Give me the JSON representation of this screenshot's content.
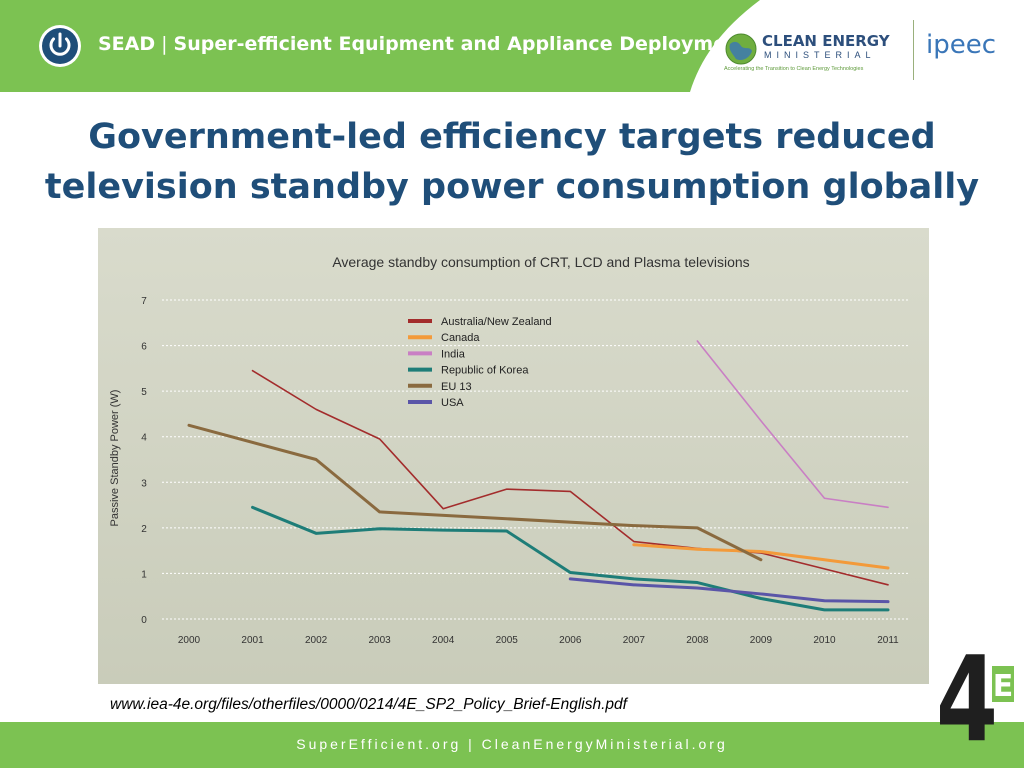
{
  "header": {
    "brand": "SEAD",
    "separator": "|",
    "title": "Super-efficient Equipment and Appliance Deployment",
    "cem_name": "CLEAN ENERGY",
    "cem_sub": "MINISTERIAL",
    "cem_tagline": "Accelerating the Transition to Clean Energy Technologies",
    "ipeec": "ipeec",
    "colors": {
      "green": "#7cc252",
      "navy": "#1f4e79"
    }
  },
  "slide": {
    "title_line1": "Government-led efficiency targets reduced",
    "title_line2": "television standby power consumption globally"
  },
  "chart_data": {
    "type": "line",
    "title": "Average standby consumption of CRT, LCD and Plasma televisions",
    "xlabel": "",
    "ylabel": "Passive Standby Power (W)",
    "x": [
      2000,
      2001,
      2002,
      2003,
      2004,
      2005,
      2006,
      2007,
      2008,
      2009,
      2010,
      2011
    ],
    "ylim": [
      0,
      7
    ],
    "yticks": [
      0,
      1,
      2,
      3,
      4,
      5,
      6,
      7
    ],
    "grid": true,
    "legend_position": "top-center",
    "series": [
      {
        "name": "Australia/New Zealand",
        "color": "#a32c2c",
        "points": [
          [
            2001,
            5.45
          ],
          [
            2002,
            4.6
          ],
          [
            2003,
            3.95
          ],
          [
            2004,
            2.42
          ],
          [
            2005,
            2.85
          ],
          [
            2006,
            2.8
          ],
          [
            2007,
            1.7
          ],
          [
            2008,
            1.55
          ],
          [
            2009,
            1.45
          ],
          [
            2010,
            1.1
          ],
          [
            2011,
            0.75
          ]
        ]
      },
      {
        "name": "Canada",
        "color": "#f39a3a",
        "points": [
          [
            2007,
            1.63
          ],
          [
            2008,
            1.53
          ],
          [
            2009,
            1.48
          ],
          [
            2010,
            1.3
          ],
          [
            2011,
            1.12
          ]
        ]
      },
      {
        "name": "India",
        "color": "#c97fc4",
        "points": [
          [
            2008,
            6.1
          ],
          [
            2009,
            4.35
          ],
          [
            2010,
            2.65
          ],
          [
            2011,
            2.45
          ]
        ]
      },
      {
        "name": "Republic of Korea",
        "color": "#1e7d78",
        "points": [
          [
            2001,
            2.45
          ],
          [
            2002,
            1.88
          ],
          [
            2003,
            1.98
          ],
          [
            2004,
            1.95
          ],
          [
            2005,
            1.93
          ],
          [
            2006,
            1.02
          ],
          [
            2007,
            0.88
          ],
          [
            2008,
            0.8
          ],
          [
            2009,
            0.45
          ],
          [
            2010,
            0.2
          ],
          [
            2011,
            0.2
          ]
        ]
      },
      {
        "name": "EU 13",
        "color": "#8a6a3f",
        "points": [
          [
            2000,
            4.25
          ],
          [
            2002,
            3.5
          ],
          [
            2003,
            2.35
          ],
          [
            2007,
            2.05
          ],
          [
            2008,
            2.0
          ],
          [
            2009,
            1.3
          ]
        ]
      },
      {
        "name": "USA",
        "color": "#5a55a8",
        "points": [
          [
            2006,
            0.88
          ],
          [
            2007,
            0.75
          ],
          [
            2008,
            0.68
          ],
          [
            2009,
            0.55
          ],
          [
            2010,
            0.4
          ],
          [
            2011,
            0.38
          ]
        ]
      }
    ]
  },
  "source": {
    "url": "www.iea-4e.org/files/otherfiles/0000/0214/4E_SP2_Policy_Brief-English.pdf"
  },
  "footer": {
    "text": "SuperEfficient.org  |  CleanEnergyMinisterial.org"
  },
  "badge": {
    "number": "4",
    "letter": "E"
  }
}
